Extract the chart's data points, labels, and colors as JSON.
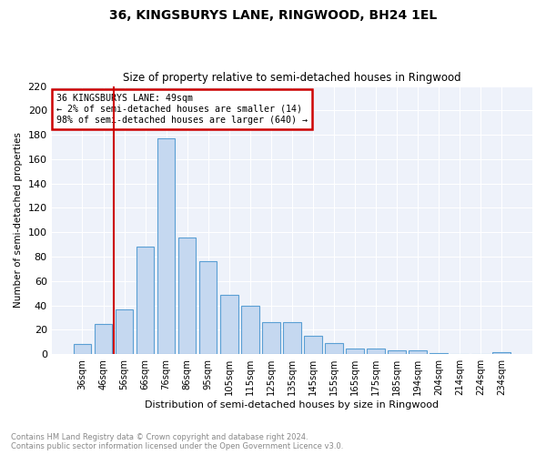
{
  "title": "36, KINGSBURYS LANE, RINGWOOD, BH24 1EL",
  "subtitle": "Size of property relative to semi-detached houses in Ringwood",
  "xlabel": "Distribution of semi-detached houses by size in Ringwood",
  "ylabel": "Number of semi-detached properties",
  "bar_labels": [
    "36sqm",
    "46sqm",
    "56sqm",
    "66sqm",
    "76sqm",
    "86sqm",
    "95sqm",
    "105sqm",
    "115sqm",
    "125sqm",
    "135sqm",
    "145sqm",
    "155sqm",
    "165sqm",
    "175sqm",
    "185sqm",
    "194sqm",
    "204sqm",
    "214sqm",
    "224sqm",
    "234sqm"
  ],
  "bar_values": [
    8,
    25,
    37,
    88,
    177,
    96,
    76,
    49,
    40,
    26,
    26,
    15,
    9,
    5,
    5,
    3,
    3,
    1,
    0,
    0,
    2
  ],
  "bar_color": "#c5d8f0",
  "bar_edge_color": "#5a9fd4",
  "vline_color": "#cc0000",
  "annotation_title": "36 KINGSBURYS LANE: 49sqm",
  "annotation_line1": "← 2% of semi-detached houses are smaller (14)",
  "annotation_line2": "98% of semi-detached houses are larger (640) →",
  "annotation_box_color": "#cc0000",
  "ylim": [
    0,
    220
  ],
  "yticks": [
    0,
    20,
    40,
    60,
    80,
    100,
    120,
    140,
    160,
    180,
    200,
    220
  ],
  "footer_line1": "Contains HM Land Registry data © Crown copyright and database right 2024.",
  "footer_line2": "Contains public sector information licensed under the Open Government Licence v3.0.",
  "plot_bg_color": "#eef2fa"
}
